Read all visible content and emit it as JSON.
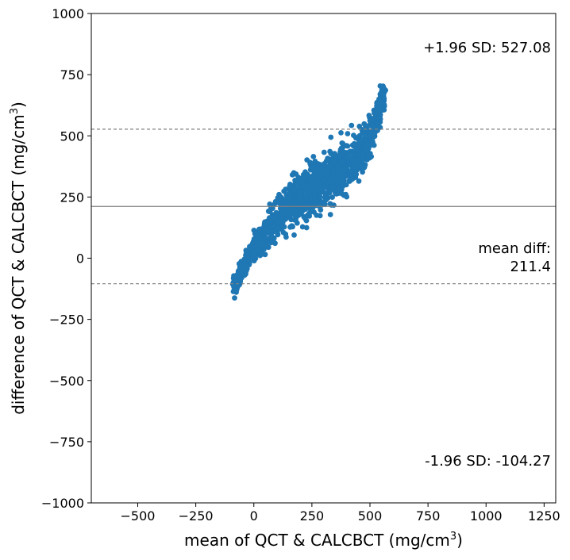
{
  "chart_data": {
    "type": "scatter",
    "title": "",
    "xlabel": "mean of QCT & CALCBCT (mg/cm",
    "xlabel_sup": "3",
    "xlabel_end": ")",
    "ylabel": "difference of QCT & CALCBCT (mg/cm",
    "ylabel_sup": "3",
    "ylabel_end": ")",
    "xlim": [
      -700,
      1300
    ],
    "ylim": [
      -1000,
      1000
    ],
    "x_ticks": [
      -500,
      -250,
      0,
      250,
      500,
      750,
      1000,
      1250
    ],
    "x_tick_labels": [
      "−500",
      "−250",
      "0",
      "250",
      "500",
      "750",
      "1000",
      "1250"
    ],
    "y_ticks": [
      1000,
      750,
      500,
      250,
      0,
      -250,
      -500,
      -750,
      -1000
    ],
    "y_tick_labels": [
      "1000",
      "750",
      "500",
      "250",
      "0",
      "−250",
      "−500",
      "−750",
      "−1000"
    ],
    "grid": false,
    "legend": "none",
    "point_color": "#1f77b4",
    "mean_diff": 211.4,
    "upper_loa": 527.08,
    "lower_loa": -104.27,
    "mean_line_color": "#808080",
    "loa_line_color": "#808080",
    "annotations": {
      "upper": "+1.96 SD: 527.08",
      "mean_line1": "mean diff:",
      "mean_line2": "211.4",
      "lower": "-1.96 SD: -104.27"
    },
    "band_center": [
      [
        -90,
        -130
      ],
      [
        -60,
        -60
      ],
      [
        -30,
        -10
      ],
      [
        0,
        30
      ],
      [
        30,
        70
      ],
      [
        60,
        110
      ],
      [
        90,
        150
      ],
      [
        120,
        185
      ],
      [
        150,
        215
      ],
      [
        180,
        240
      ],
      [
        210,
        260
      ],
      [
        240,
        285
      ],
      [
        270,
        300
      ],
      [
        300,
        320
      ],
      [
        330,
        340
      ],
      [
        360,
        360
      ],
      [
        390,
        375
      ],
      [
        420,
        395
      ],
      [
        450,
        420
      ],
      [
        480,
        460
      ],
      [
        510,
        520
      ],
      [
        540,
        590
      ],
      [
        560,
        690
      ]
    ],
    "band_halfwidth": [
      30,
      40,
      45,
      50,
      55,
      65,
      75,
      85,
      95,
      100,
      105,
      110,
      110,
      110,
      105,
      100,
      95,
      95,
      90,
      85,
      70,
      55,
      25
    ],
    "n_points": 1400
  }
}
